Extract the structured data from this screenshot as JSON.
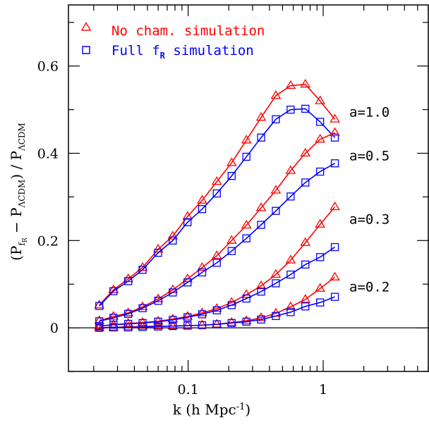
{
  "chart_data": {
    "type": "line",
    "xscale": "log",
    "xlim": [
      0.013,
      6.0
    ],
    "ylim": [
      -0.1,
      0.74
    ],
    "xticks": [
      {
        "value": 0.1,
        "label": "0.1"
      },
      {
        "value": 1,
        "label": "1"
      }
    ],
    "yticks": [
      {
        "value": 0,
        "label": "0"
      },
      {
        "value": 0.2,
        "label": "0.2"
      },
      {
        "value": 0.4,
        "label": "0.4"
      },
      {
        "value": 0.6,
        "label": "0.6"
      }
    ],
    "xlabel": {
      "main": "k (h Mpc",
      "sup": "-1",
      "end": ")"
    },
    "ylabel": {
      "p1": "(P",
      "f": "f",
      "R": "R",
      "minus": " − P",
      "lcdm": "ΛCDM",
      "close": ") / P",
      "lcdm2": "ΛCDM"
    },
    "legend": [
      {
        "text": "No cham. simulation",
        "color": "#ff0000",
        "marker": "triangle"
      },
      {
        "text_main": "Full f",
        "text_sub": "R",
        "text_end": " simulation",
        "color": "#0000ff",
        "marker": "square"
      }
    ],
    "annotations": [
      {
        "text": "a=1.0",
        "y": 0.495
      },
      {
        "text": "a=0.5",
        "y": 0.395
      },
      {
        "text": "a=0.3",
        "y": 0.25
      },
      {
        "text": "a=0.2",
        "y": 0.095
      }
    ],
    "k": [
      0.022,
      0.028,
      0.036,
      0.046,
      0.06,
      0.077,
      0.099,
      0.127,
      0.163,
      0.21,
      0.27,
      0.347,
      0.446,
      0.574,
      0.738,
      0.949,
      1.22
    ],
    "series": [
      {
        "group": "a=1.0",
        "kind": "no_cham",
        "color": "#ff0000",
        "values": [
          0.052,
          0.087,
          0.112,
          0.138,
          0.18,
          0.21,
          0.255,
          0.292,
          0.335,
          0.378,
          0.43,
          0.482,
          0.532,
          0.555,
          0.558,
          0.52,
          0.478
        ]
      },
      {
        "group": "a=1.0",
        "kind": "full",
        "color": "#0000ff",
        "values": [
          0.05,
          0.084,
          0.107,
          0.133,
          0.172,
          0.2,
          0.242,
          0.272,
          0.308,
          0.348,
          0.392,
          0.436,
          0.478,
          0.5,
          0.502,
          0.472,
          0.436
        ]
      },
      {
        "group": "a=0.5",
        "kind": "no_cham",
        "color": "#ff0000",
        "values": [
          0.016,
          0.026,
          0.034,
          0.048,
          0.066,
          0.087,
          0.112,
          0.138,
          0.165,
          0.2,
          0.235,
          0.275,
          0.315,
          0.36,
          0.4,
          0.432,
          0.447
        ]
      },
      {
        "group": "a=0.5",
        "kind": "full",
        "color": "#0000ff",
        "values": [
          0.015,
          0.023,
          0.032,
          0.045,
          0.062,
          0.081,
          0.104,
          0.127,
          0.149,
          0.176,
          0.205,
          0.236,
          0.268,
          0.301,
          0.333,
          0.358,
          0.377
        ]
      },
      {
        "group": "a=0.3",
        "kind": "no_cham",
        "color": "#ff0000",
        "values": [
          0.004,
          0.007,
          0.01,
          0.012,
          0.015,
          0.02,
          0.026,
          0.034,
          0.044,
          0.058,
          0.076,
          0.096,
          0.122,
          0.155,
          0.195,
          0.237,
          0.277
        ]
      },
      {
        "group": "a=0.3",
        "kind": "full",
        "color": "#0000ff",
        "values": [
          0.004,
          0.007,
          0.009,
          0.011,
          0.014,
          0.018,
          0.024,
          0.031,
          0.04,
          0.052,
          0.067,
          0.083,
          0.102,
          0.122,
          0.145,
          0.162,
          0.185
        ]
      },
      {
        "group": "a=0.2",
        "kind": "no_cham",
        "color": "#ff0000",
        "values": [
          0.0,
          0.001,
          0.002,
          0.003,
          0.004,
          0.004,
          0.005,
          0.006,
          0.008,
          0.012,
          0.016,
          0.023,
          0.033,
          0.048,
          0.065,
          0.09,
          0.116
        ]
      },
      {
        "group": "a=0.2",
        "kind": "full",
        "color": "#0000ff",
        "values": [
          0.0,
          0.001,
          0.001,
          0.002,
          0.003,
          0.004,
          0.005,
          0.006,
          0.008,
          0.011,
          0.014,
          0.019,
          0.027,
          0.036,
          0.049,
          0.058,
          0.071
        ]
      }
    ]
  }
}
